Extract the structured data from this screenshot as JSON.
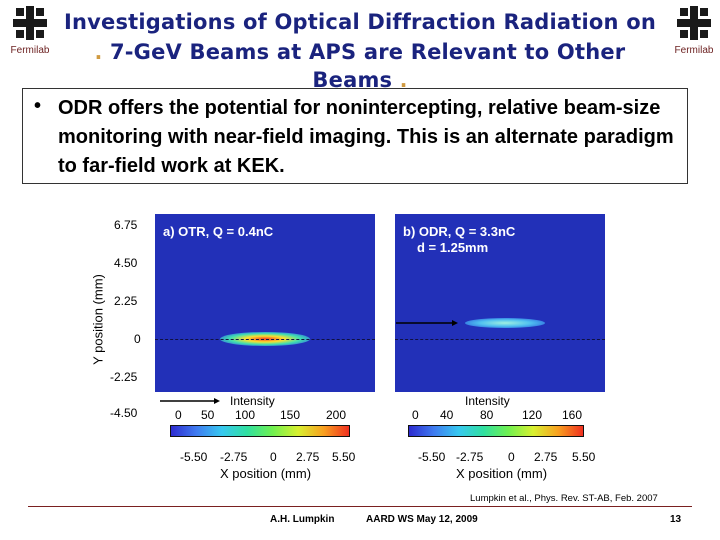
{
  "header": {
    "title_line1": "Investigations of Optical Diffraction Radiation on",
    "title_line2": "7-GeV Beams at APS are Relevant to Other Beams",
    "logo_left": "Fermilab",
    "logo_right": "Fermilab"
  },
  "bullet": {
    "text": "ODR offers the potential for nonintercepting, relative beam-size monitoring with near-field imaging. This is an alternate paradigm to far-field work at KEK."
  },
  "figure": {
    "ylabel": "Y position (mm)",
    "yticks": [
      "6.75",
      "4.50",
      "2.25",
      "0",
      "-2.25",
      "-4.50"
    ],
    "panel_a": {
      "label": "a) OTR, Q = 0.4nC",
      "intensity_label": "Intensity",
      "cbar_ticks": [
        "0",
        "50",
        "100",
        "150",
        "200"
      ],
      "xticks": [
        "-5.50",
        "-2.75",
        "0",
        "2.75",
        "5.50"
      ],
      "xlabel": "X position (mm)"
    },
    "panel_b": {
      "label": "b) ODR, Q = 3.3nC",
      "label2": "d = 1.25mm",
      "intensity_label": "Intensity",
      "cbar_ticks": [
        "0",
        "40",
        "80",
        "120",
        "160"
      ],
      "xticks": [
        "-5.50",
        "-2.75",
        "0",
        "2.75",
        "5.50"
      ],
      "xlabel": "X position (mm)"
    }
  },
  "citation": "Lumpkin et al., Phys. Rev. ST-AB, Feb. 2007",
  "footer": {
    "author": "A.H. Lumpkin",
    "event": "AARD WS  May 12, 2009",
    "page": "13"
  }
}
